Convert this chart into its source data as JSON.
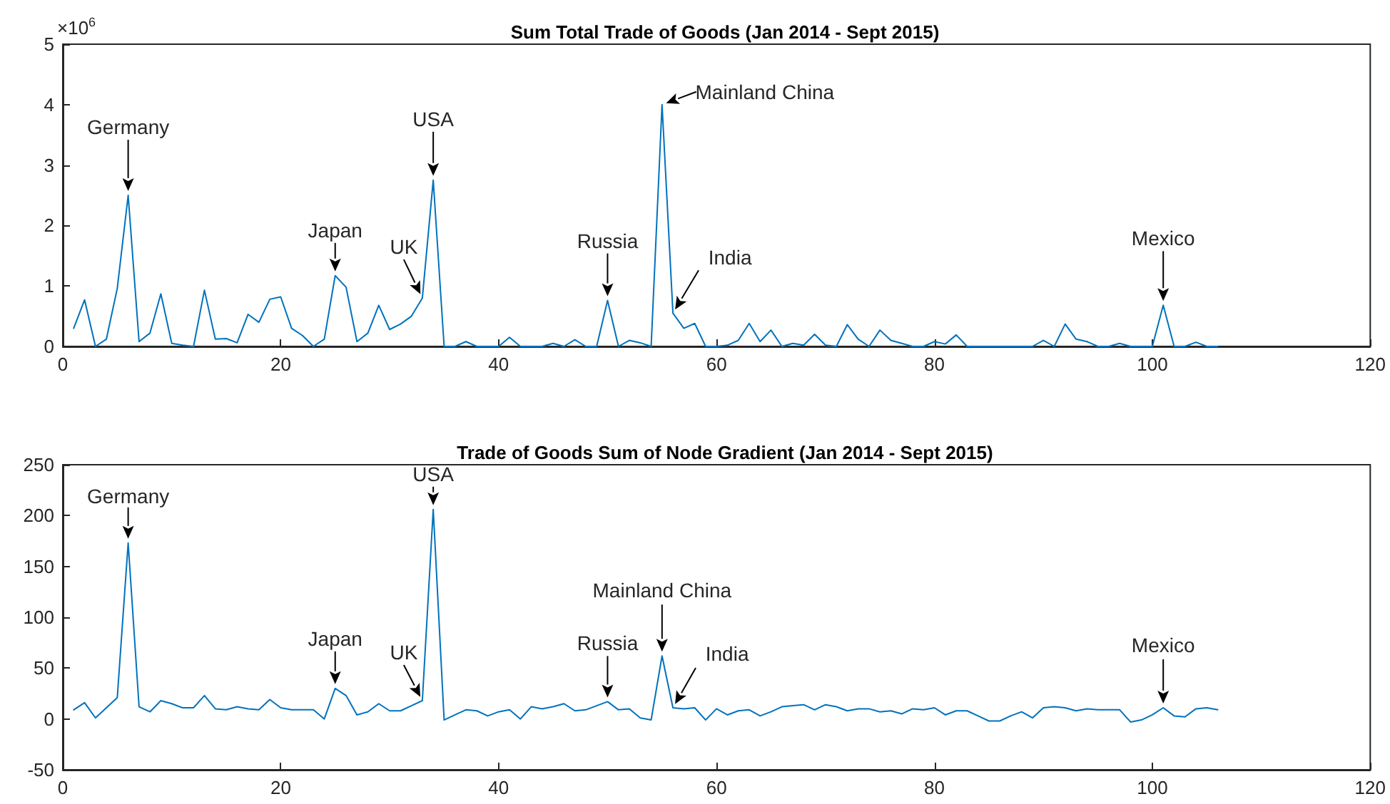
{
  "chart_data": [
    {
      "type": "line",
      "title": "Sum Total Trade of Goods (Jan 2014 - Sept 2015)",
      "x": [
        1,
        2,
        3,
        4,
        5,
        6,
        7,
        8,
        9,
        10,
        11,
        12,
        13,
        14,
        15,
        16,
        17,
        18,
        19,
        20,
        21,
        22,
        23,
        24,
        25,
        26,
        27,
        28,
        29,
        30,
        31,
        32,
        33,
        34,
        35,
        36,
        37,
        38,
        39,
        40,
        41,
        42,
        43,
        44,
        45,
        46,
        47,
        48,
        49,
        50,
        51,
        52,
        53,
        54,
        55,
        56,
        57,
        58,
        59,
        60,
        61,
        62,
        63,
        64,
        65,
        66,
        67,
        68,
        69,
        70,
        71,
        72,
        73,
        74,
        75,
        76,
        77,
        78,
        79,
        80,
        81,
        82,
        83,
        84,
        85,
        86,
        87,
        88,
        89,
        90,
        91,
        92,
        93,
        94,
        95,
        96,
        97,
        98,
        99,
        100,
        101,
        102,
        103,
        104,
        105,
        106
      ],
      "series": [
        {
          "color": "#0072bd",
          "values": [
            0.3,
            0.77,
            0,
            0.12,
            0.96,
            2.5,
            0.08,
            0.22,
            0.87,
            0.05,
            0.02,
            0,
            0.93,
            0.12,
            0.13,
            0.06,
            0.53,
            0.4,
            0.78,
            0.82,
            0.3,
            0.18,
            0,
            0.12,
            1.17,
            0.98,
            0.08,
            0.22,
            0.68,
            0.28,
            0.37,
            0.5,
            0.8,
            2.75,
            0,
            0,
            0.08,
            0,
            0,
            0,
            0.15,
            0,
            0,
            0,
            0.05,
            0,
            0.11,
            0,
            0,
            0.76,
            0,
            0.1,
            0.06,
            0,
            4,
            0.55,
            0.3,
            0.38,
            0,
            0,
            0.02,
            0.1,
            0.38,
            0.08,
            0.27,
            0,
            0.05,
            0.02,
            0.2,
            0.02,
            0,
            0.36,
            0.12,
            0,
            0.27,
            0.1,
            0.05,
            0,
            0,
            0.08,
            0.04,
            0.19,
            0,
            0,
            0,
            0,
            0,
            0,
            0,
            0.1,
            0,
            0.37,
            0.12,
            0.08,
            0,
            0,
            0.05,
            0,
            0,
            0,
            0.68,
            0,
            0,
            0.07,
            0,
            0
          ]
        }
      ],
      "xlim": [
        0,
        120
      ],
      "xticks": [
        0,
        20,
        40,
        60,
        80,
        100,
        120
      ],
      "ylim": [
        0,
        5
      ],
      "yticks": [
        0,
        1,
        2,
        3,
        4,
        5
      ],
      "grid": false,
      "marker": "none",
      "line_style": "solid",
      "annotations": [
        "×10$^{6}$",
        {
          "text": "Germany",
          "x": 6,
          "y": 2.5
        },
        {
          "text": "Japan",
          "x": 25,
          "y": 1.17
        },
        {
          "text": "UK",
          "x": 33,
          "y": 0.8
        },
        {
          "text": "USA",
          "x": 34,
          "y": 2.75
        },
        {
          "text": "Russia",
          "x": 50,
          "y": 0.76
        },
        {
          "text": "Mainland China",
          "x": 55,
          "y": 4
        },
        {
          "text": "India",
          "x": 56,
          "y": 0.55
        },
        {
          "text": "Mexico",
          "x": 101,
          "y": 0.68
        }
      ]
    },
    {
      "type": "line",
      "title": "Trade of Goods Sum of Node Gradient (Jan 2014 - Sept 2015)",
      "x": [
        1,
        2,
        3,
        4,
        5,
        6,
        7,
        8,
        9,
        10,
        11,
        12,
        13,
        14,
        15,
        16,
        17,
        18,
        19,
        20,
        21,
        22,
        23,
        24,
        25,
        26,
        27,
        28,
        29,
        30,
        31,
        32,
        33,
        34,
        35,
        36,
        37,
        38,
        39,
        40,
        41,
        42,
        43,
        44,
        45,
        46,
        47,
        48,
        49,
        50,
        51,
        52,
        53,
        54,
        55,
        56,
        57,
        58,
        59,
        60,
        61,
        62,
        63,
        64,
        65,
        66,
        67,
        68,
        69,
        70,
        71,
        72,
        73,
        74,
        75,
        76,
        77,
        78,
        79,
        80,
        81,
        82,
        83,
        84,
        85,
        86,
        87,
        88,
        89,
        90,
        91,
        92,
        93,
        94,
        95,
        96,
        97,
        98,
        99,
        100,
        101,
        102,
        103,
        104,
        105,
        106
      ],
      "series": [
        {
          "color": "#0072bd",
          "values": [
            9,
            16,
            1,
            11,
            21,
            173,
            12,
            7,
            18,
            15,
            11,
            11,
            23,
            10,
            9,
            12,
            10,
            9,
            19,
            11,
            9,
            9,
            9,
            0,
            30,
            23,
            4,
            7,
            15,
            8,
            8,
            13,
            18,
            206,
            -1,
            4,
            9,
            8,
            3,
            7,
            9,
            0,
            12,
            10,
            12,
            15,
            8,
            9,
            13,
            17,
            9,
            10,
            1,
            -1,
            62,
            11,
            10,
            11,
            -1,
            10,
            4,
            8,
            9,
            3,
            7,
            12,
            13,
            14,
            9,
            14,
            12,
            8,
            10,
            10,
            7,
            8,
            5,
            10,
            9,
            11,
            4,
            8,
            8,
            3,
            -2,
            -2,
            3,
            7,
            1,
            11,
            12,
            11,
            8,
            10,
            9,
            9,
            9,
            -3,
            -1,
            4,
            11,
            3,
            2,
            10,
            11,
            9
          ]
        }
      ],
      "xlim": [
        0,
        120
      ],
      "xticks": [
        0,
        20,
        40,
        60,
        80,
        100,
        120
      ],
      "ylim": [
        -50,
        250
      ],
      "yticks": [
        -50,
        0,
        50,
        100,
        150,
        200,
        250
      ],
      "grid": false,
      "marker": "none",
      "line_style": "solid",
      "annotations": [
        {
          "text": "Germany",
          "x": 6,
          "y": 173
        },
        {
          "text": "Japan",
          "x": 25,
          "y": 30
        },
        {
          "text": "UK",
          "x": 33,
          "y": 18
        },
        {
          "text": "USA",
          "x": 34,
          "y": 206
        },
        {
          "text": "Russia",
          "x": 50,
          "y": 17
        },
        {
          "text": "Mainland China",
          "x": 55,
          "y": 62
        },
        {
          "text": "India",
          "x": 56,
          "y": 11
        },
        {
          "text": "Mexico",
          "x": 101,
          "y": 11
        }
      ]
    }
  ]
}
